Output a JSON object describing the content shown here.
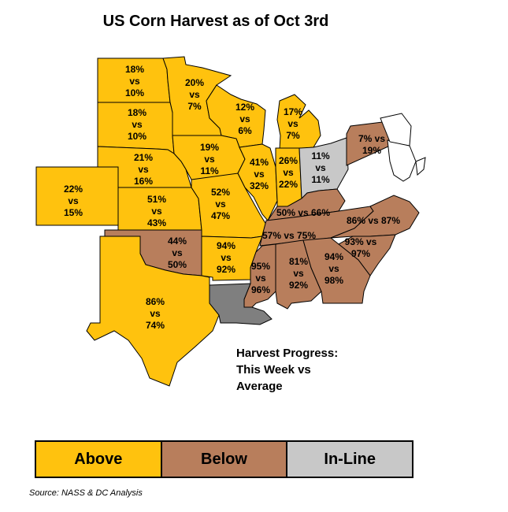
{
  "title": "US Corn Harvest as of Oct 3rd",
  "note": [
    "Harvest Progress:",
    "This Week vs",
    "Average"
  ],
  "colors": {
    "above": "#FFC20E",
    "below": "#B87E5C",
    "in_line": "#C8C8C8",
    "no_data_gray": "#7F7F7F",
    "white_states": "#FFFFFF"
  },
  "legend": [
    {
      "label": "Above",
      "category": "above"
    },
    {
      "label": "Below",
      "category": "below"
    },
    {
      "label": "In-Line",
      "category": "in_line"
    }
  ],
  "source": "Source: NASS & DC Analysis",
  "states": [
    {
      "state": "North Dakota",
      "this_week": "18%",
      "average": "10%",
      "category": "above",
      "label_lines": [
        "18%",
        "vs",
        "10%"
      ]
    },
    {
      "state": "Minnesota",
      "this_week": "20%",
      "average": "7%",
      "category": "above",
      "label_lines": [
        "20%",
        "vs",
        "7%"
      ]
    },
    {
      "state": "South Dakota",
      "this_week": "18%",
      "average": "10%",
      "category": "above",
      "label_lines": [
        "18%",
        "vs",
        "10%"
      ]
    },
    {
      "state": "Wisconsin",
      "this_week": "12%",
      "average": "6%",
      "category": "above",
      "label_lines": [
        "12%",
        "vs",
        "6%"
      ]
    },
    {
      "state": "Michigan",
      "this_week": "17%",
      "average": "7%",
      "category": "above",
      "label_lines": [
        "17%",
        "vs",
        "7%"
      ]
    },
    {
      "state": "Iowa",
      "this_week": "19%",
      "average": "11%",
      "category": "above",
      "label_lines": [
        "19%",
        "vs",
        "11%"
      ]
    },
    {
      "state": "Nebraska",
      "this_week": "21%",
      "average": "16%",
      "category": "above",
      "label_lines": [
        "21%",
        "vs",
        "16%"
      ]
    },
    {
      "state": "Colorado",
      "this_week": "22%",
      "average": "15%",
      "category": "above",
      "label_lines": [
        "22%",
        "vs",
        "15%"
      ]
    },
    {
      "state": "Kansas",
      "this_week": "51%",
      "average": "43%",
      "category": "above",
      "label_lines": [
        "51%",
        "vs",
        "43%"
      ]
    },
    {
      "state": "Missouri",
      "this_week": "52%",
      "average": "47%",
      "category": "above",
      "label_lines": [
        "52%",
        "vs",
        "47%"
      ]
    },
    {
      "state": "Illinois",
      "this_week": "41%",
      "average": "32%",
      "category": "above",
      "label_lines": [
        "41%",
        "vs",
        "32%"
      ]
    },
    {
      "state": "Indiana",
      "this_week": "26%",
      "average": "22%",
      "category": "above",
      "label_lines": [
        "26%",
        "vs",
        "22%"
      ]
    },
    {
      "state": "Ohio",
      "this_week": "11%",
      "average": "11%",
      "category": "in_line",
      "label_lines": [
        "11%",
        "vs",
        "11%"
      ]
    },
    {
      "state": "Pennsylvania",
      "this_week": "7%",
      "average": "19%",
      "category": "below",
      "label_lines": [
        "7% vs",
        "19%"
      ]
    },
    {
      "state": "Kentucky",
      "this_week": "50%",
      "average": "66%",
      "category": "below",
      "label_lines": [
        "50% vs 66%"
      ]
    },
    {
      "state": "Tennessee",
      "this_week": "57%",
      "average": "75%",
      "category": "below",
      "label_lines": [
        "57% vs 75%"
      ]
    },
    {
      "state": "North Carolina",
      "this_week": "86%",
      "average": "87%",
      "category": "below",
      "label_lines": [
        "86% vs 87%"
      ]
    },
    {
      "state": "Oklahoma",
      "this_week": "44%",
      "average": "50%",
      "category": "below",
      "label_lines": [
        "44%",
        "vs",
        "50%"
      ]
    },
    {
      "state": "Arkansas",
      "this_week": "94%",
      "average": "92%",
      "category": "above",
      "label_lines": [
        "94%",
        "vs",
        "92%"
      ]
    },
    {
      "state": "South Carolina",
      "this_week": "93%",
      "average": "97%",
      "category": "below",
      "label_lines": [
        "93% vs",
        "97%"
      ]
    },
    {
      "state": "Mississippi",
      "this_week": "95%",
      "average": "96%",
      "category": "below",
      "label_lines": [
        "95%",
        "vs",
        "96%"
      ]
    },
    {
      "state": "Alabama",
      "this_week": "81%",
      "average": "92%",
      "category": "below",
      "label_lines": [
        "81%",
        "vs",
        "92%"
      ]
    },
    {
      "state": "Georgia",
      "this_week": "94%",
      "average": "98%",
      "category": "below",
      "label_lines": [
        "94%",
        "vs",
        "98%"
      ]
    },
    {
      "state": "Texas",
      "this_week": "86%",
      "average": "74%",
      "category": "above",
      "label_lines": [
        "86%",
        "vs",
        "74%"
      ]
    },
    {
      "state": "Louisiana",
      "this_week": "",
      "average": "",
      "category": "no_data_gray",
      "label_lines": []
    }
  ]
}
